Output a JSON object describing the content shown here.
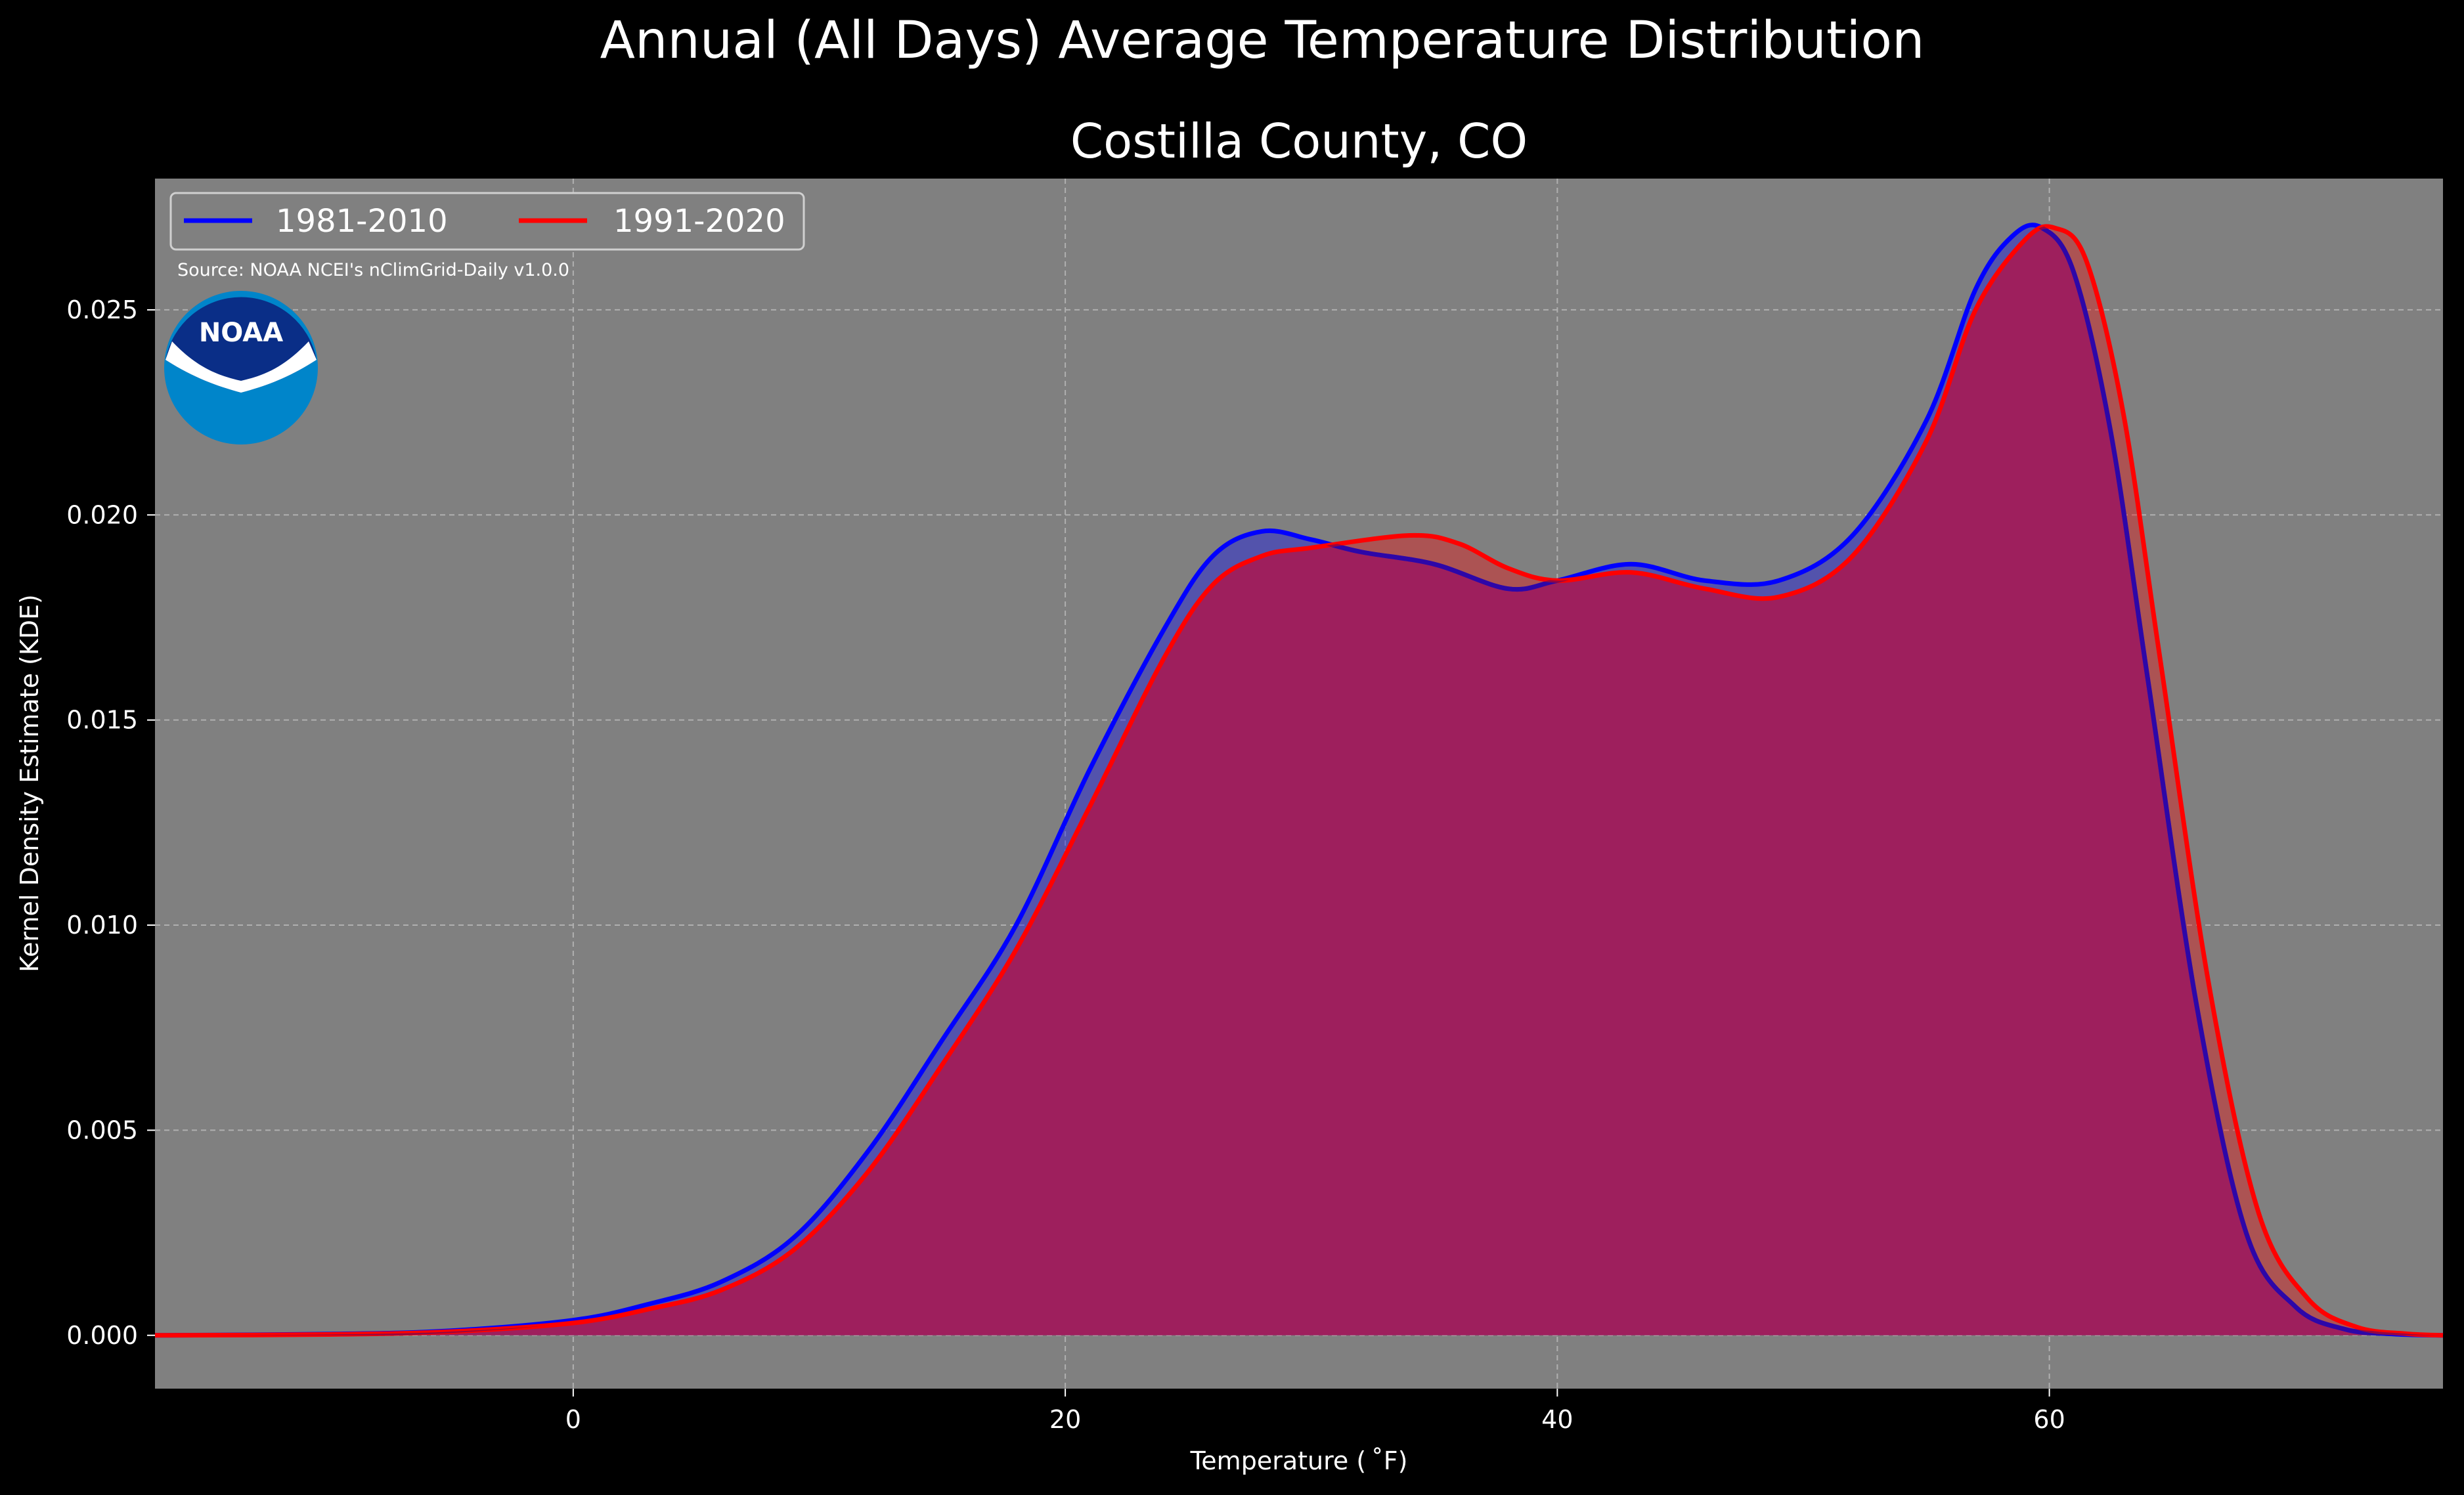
{
  "chart_data": {
    "type": "area",
    "suptitle": "Annual (All Days) Average Temperature Distribution",
    "title": "Costilla County, CO",
    "xlabel": "Temperature ($^\\circ$F)",
    "xlabel_display": "Temperature ( ˚F)",
    "ylabel": "Kernel Density Estimate (KDE)",
    "xlim": [
      -17,
      76
    ],
    "ylim": [
      -0.0013,
      0.0282
    ],
    "xticks": [
      0,
      20,
      40,
      60
    ],
    "xtick_labels": [
      "0",
      "20",
      "40",
      "60"
    ],
    "yticks": [
      0.0,
      0.005,
      0.01,
      0.015,
      0.02,
      0.025
    ],
    "ytick_labels": [
      "0.000",
      "0.005",
      "0.010",
      "0.015",
      "0.020",
      "0.025"
    ],
    "grid": true,
    "legend_position": "top-left",
    "source_note": "Source: NOAA NCEI's nClimGrid-Daily v1.0.0",
    "logo_text": "NOAA",
    "colors": {
      "page_background": "#000000",
      "plot_background": "#808080",
      "grid": "#b0b0b0",
      "series_1981": "#0000ff",
      "series_1991": "#ff0000",
      "overlap_fill": "#9e1f5d",
      "logo_dark": "#0a2e87",
      "logo_light": "#0085ca"
    },
    "series": [
      {
        "name": "1981-2010",
        "color": "#0000ff",
        "x": [
          -17,
          -10,
          -5,
          0,
          3,
          6,
          9,
          12,
          15,
          18,
          21,
          24,
          26,
          28,
          30,
          32,
          35,
          38,
          40,
          43,
          46,
          49,
          52,
          55,
          57,
          58.5,
          59.7,
          61,
          62.5,
          64,
          66,
          68,
          70,
          72,
          74,
          76
        ],
        "y": [
          0.0,
          3e-05,
          0.00011,
          0.00037,
          0.00075,
          0.0013,
          0.0024,
          0.0045,
          0.0072,
          0.01,
          0.0138,
          0.0172,
          0.019,
          0.0196,
          0.0194,
          0.0191,
          0.0188,
          0.0182,
          0.0184,
          0.0188,
          0.0184,
          0.0184,
          0.0195,
          0.0223,
          0.0255,
          0.0268,
          0.027,
          0.0259,
          0.022,
          0.016,
          0.008,
          0.0025,
          0.0007,
          0.00015,
          3e-05,
          0.0
        ]
      },
      {
        "name": "1991-2020",
        "color": "#ff0000",
        "x": [
          -17,
          -10,
          -5,
          0,
          3,
          6,
          9,
          12,
          15,
          18,
          21,
          24,
          26,
          28,
          30,
          34,
          36,
          38,
          40,
          43,
          46,
          49,
          52,
          55,
          57,
          59,
          60.2,
          61.5,
          63,
          64.5,
          66.5,
          68.5,
          70.5,
          72.5,
          74.5,
          76
        ],
        "y": [
          0.0,
          2e-05,
          9e-05,
          0.0003,
          0.00063,
          0.0011,
          0.0021,
          0.004,
          0.0066,
          0.0094,
          0.0129,
          0.0165,
          0.0183,
          0.019,
          0.0192,
          0.0195,
          0.0193,
          0.0187,
          0.0184,
          0.0186,
          0.0182,
          0.018,
          0.019,
          0.0218,
          0.025,
          0.0267,
          0.027,
          0.0262,
          0.0225,
          0.0165,
          0.0085,
          0.003,
          0.0009,
          0.0002,
          4e-05,
          0.0
        ]
      }
    ]
  }
}
